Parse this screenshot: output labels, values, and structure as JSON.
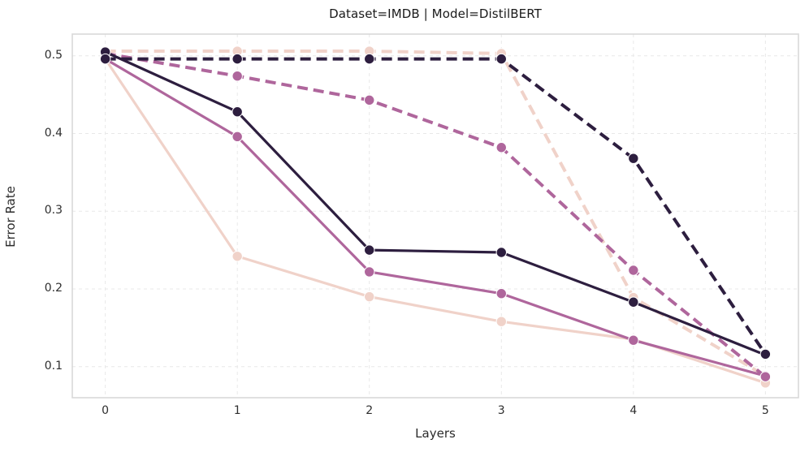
{
  "chart_data": {
    "type": "line",
    "title": "Dataset=IMDB | Model=DistilBERT",
    "xlabel": "Layers",
    "ylabel": "Error Rate",
    "x": [
      0,
      1,
      2,
      3,
      4,
      5
    ],
    "xlim": [
      -0.25,
      5.25
    ],
    "ylim": [
      0.06,
      0.528
    ],
    "xticks": [
      0,
      1,
      2,
      3,
      4,
      5
    ],
    "xtick_labels": [
      "0",
      "1",
      "2",
      "3",
      "4",
      "5"
    ],
    "yticks": [
      0.1,
      0.2,
      0.3,
      0.4,
      0.5
    ],
    "ytick_labels": [
      "0.1",
      "0.2",
      "0.3",
      "0.4",
      "0.5"
    ],
    "grid": true,
    "legend": "none",
    "colors": {
      "dark": "#2d1e3f",
      "mauve": "#af669c",
      "pale": "#f0d2c9",
      "gridline": "#e8e8e8",
      "spine": "#d8d8d8",
      "marker_edge": "#ffffff"
    },
    "series": [
      {
        "name": "pale-solid",
        "color": "#f0d2c9",
        "style": "solid",
        "values": [
          0.496,
          0.242,
          0.19,
          0.158,
          0.135,
          0.079
        ]
      },
      {
        "name": "pale-dashed",
        "color": "#f0d2c9",
        "style": "dashed",
        "values": [
          0.506,
          0.506,
          0.506,
          0.503,
          0.189,
          0.088
        ]
      },
      {
        "name": "mauve-solid",
        "color": "#af669c",
        "style": "solid",
        "values": [
          0.496,
          0.396,
          0.222,
          0.194,
          0.134,
          0.088
        ]
      },
      {
        "name": "mauve-dashed",
        "color": "#af669c",
        "style": "dashed",
        "values": [
          0.503,
          0.474,
          0.443,
          0.382,
          0.224,
          0.087
        ]
      },
      {
        "name": "dark-solid",
        "color": "#2d1e3f",
        "style": "solid",
        "values": [
          0.505,
          0.428,
          0.25,
          0.247,
          0.183,
          0.115
        ]
      },
      {
        "name": "dark-dashed",
        "color": "#2d1e3f",
        "style": "dashed",
        "values": [
          0.496,
          0.496,
          0.496,
          0.496,
          0.368,
          0.116
        ]
      }
    ]
  }
}
